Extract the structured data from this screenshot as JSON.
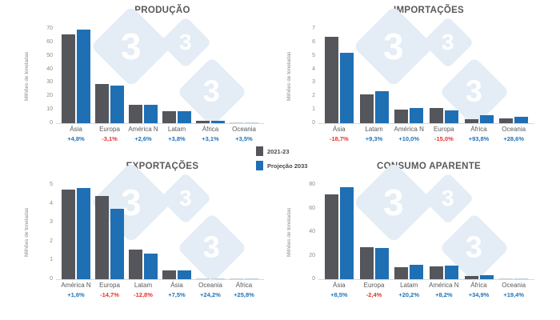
{
  "legend": {
    "items": [
      {
        "label": "2021-23",
        "color": "#54565C"
      },
      {
        "label": "Projeção 2033",
        "color": "#1F6FB4"
      }
    ]
  },
  "colors": {
    "bar_2021_23": "#54565C",
    "bar_proj_2033": "#1F6FB4",
    "positive_change": "#2273B8",
    "negative_change": "#E8312A",
    "title_text": "#595959",
    "axis_text": "#8C8C8C",
    "watermark_fill": "#E4ECF5"
  },
  "watermark_glyph": "3",
  "chart_data": [
    {
      "type": "bar",
      "title": "PRODUÇÃO",
      "ylabel": "Milhões de toneladas",
      "ylim": [
        0,
        70
      ],
      "yticks": [
        0,
        10,
        20,
        30,
        40,
        50,
        60,
        70
      ],
      "grid": false,
      "categories": [
        "Ásia",
        "Europa",
        "América N",
        "Latam",
        "África",
        "Oceania"
      ],
      "series": [
        {
          "name": "2021-23",
          "values": [
            66,
            29,
            13.5,
            8.8,
            1.9,
            0.4
          ]
        },
        {
          "name": "Projeção 2033",
          "values": [
            69.2,
            28.1,
            13.9,
            9.1,
            2.0,
            0.41
          ]
        }
      ],
      "change_labels": [
        "+4,8%",
        "-3,1%",
        "+2,6%",
        "+3,8%",
        "+3,1%",
        "+3,5%"
      ]
    },
    {
      "type": "bar",
      "title": "IMPORTAÇÕES",
      "ylabel": "Milhões de toneladas",
      "ylim": [
        0,
        7
      ],
      "yticks": [
        0,
        1,
        2,
        3,
        4,
        5,
        6,
        7
      ],
      "grid": false,
      "categories": [
        "Ásia",
        "Latam",
        "América N",
        "Europa",
        "África",
        "Oceania"
      ],
      "series": [
        {
          "name": "2021-23",
          "values": [
            6.4,
            2.15,
            1.0,
            1.1,
            0.3,
            0.35
          ]
        },
        {
          "name": "Projeção 2033",
          "values": [
            5.2,
            2.35,
            1.1,
            0.94,
            0.58,
            0.45
          ]
        }
      ],
      "change_labels": [
        "-18,7%",
        "+9,3%",
        "+10,0%",
        "-15,0%",
        "+93,8%",
        "+28,6%"
      ]
    },
    {
      "type": "bar",
      "title": "EXPORTAÇÕES",
      "ylabel": "Milhões de toneladas",
      "ylim": [
        0,
        5
      ],
      "yticks": [
        0,
        1,
        2,
        3,
        4,
        5
      ],
      "grid": false,
      "categories": [
        "América N",
        "Europa",
        "Latam",
        "Ásia",
        "Oceania",
        "África"
      ],
      "series": [
        {
          "name": "2021-23",
          "values": [
            4.75,
            4.4,
            1.55,
            0.45,
            0.05,
            0.05
          ]
        },
        {
          "name": "Projeção 2033",
          "values": [
            4.83,
            3.75,
            1.35,
            0.48,
            0.06,
            0.06
          ]
        }
      ],
      "change_labels": [
        "+1,6%",
        "-14,7%",
        "-12,8%",
        "+7,5%",
        "+24,2%",
        "+25,8%"
      ]
    },
    {
      "type": "bar",
      "title": "CONSUMO APARENTE",
      "ylabel": "Milhões de toneladas",
      "ylim": [
        0,
        80
      ],
      "yticks": [
        0,
        20,
        40,
        60,
        80
      ],
      "grid": false,
      "categories": [
        "Ásia",
        "Europa",
        "Latam",
        "América N",
        "África",
        "Oceania"
      ],
      "series": [
        {
          "name": "2021-23",
          "values": [
            72,
            27,
            10.4,
            10.8,
            2.5,
            0.6
          ]
        },
        {
          "name": "Projeção 2033",
          "values": [
            78.1,
            26.4,
            12.5,
            11.7,
            3.4,
            0.72
          ]
        }
      ],
      "change_labels": [
        "+8,5%",
        "-2,4%",
        "+20,2%",
        "+8,2%",
        "+34,9%",
        "+19,4%"
      ]
    }
  ]
}
